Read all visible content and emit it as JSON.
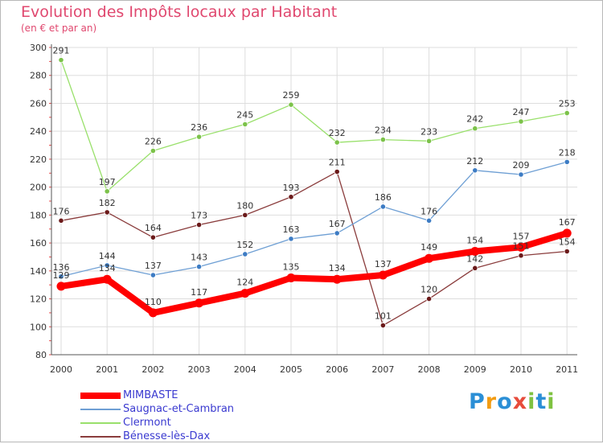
{
  "header": {
    "title": "Evolution des Impôts locaux par Habitant",
    "subtitle": "(en € et par an)"
  },
  "brand": {
    "letters": [
      "P",
      "r",
      "o",
      "x",
      "i",
      "t",
      "i"
    ],
    "colors": [
      "#2b8fd6",
      "#f39c12",
      "#2b8fd6",
      "#e74c3c",
      "#7fc241",
      "#2b8fd6",
      "#7fc241"
    ]
  },
  "chart_data": {
    "type": "line",
    "title": "Evolution des Impôts locaux par Habitant",
    "subtitle": "(en € et par an)",
    "xlabel": "",
    "ylabel": "",
    "x": [
      "2000",
      "2001",
      "2002",
      "2003",
      "2004",
      "2005",
      "2006",
      "2007",
      "2008",
      "2009",
      "2010",
      "2011"
    ],
    "ylim": [
      80,
      300
    ],
    "yticks": [
      80,
      100,
      120,
      140,
      160,
      180,
      200,
      220,
      240,
      260,
      280,
      300
    ],
    "grid": true,
    "legend_position": "bottom-left",
    "series": [
      {
        "name": "Clermont",
        "color": "#99e06b",
        "marker": "#7cc24a",
        "width": 1.3,
        "values": [
          291,
          197,
          226,
          236,
          245,
          259,
          232,
          234,
          233,
          242,
          247,
          253
        ]
      },
      {
        "name": "Bénesse-lès-Dax",
        "color": "#8a3c3c",
        "marker": "#6b1a1a",
        "width": 1.3,
        "values": [
          176,
          182,
          164,
          173,
          180,
          193,
          211,
          101,
          120,
          142,
          151,
          154
        ]
      },
      {
        "name": "Saugnac-et-Cambran",
        "color": "#6e9fd4",
        "marker": "#3d7cc4",
        "width": 1.3,
        "values": [
          136,
          144,
          137,
          143,
          152,
          163,
          167,
          186,
          176,
          212,
          209,
          218
        ]
      },
      {
        "name": "MIMBASTE",
        "color": "#ff0000",
        "marker": "#ff0000",
        "width": 8,
        "values": [
          129,
          134,
          110,
          117,
          124,
          135,
          134,
          137,
          149,
          154,
          157,
          167
        ]
      }
    ],
    "legend": [
      {
        "name": "MIMBASTE",
        "color": "#ff0000",
        "width": 8
      },
      {
        "name": "Saugnac-et-Cambran",
        "color": "#6e9fd4",
        "width": 2
      },
      {
        "name": "Clermont",
        "color": "#99e06b",
        "width": 2
      },
      {
        "name": "Bénesse-lès-Dax",
        "color": "#8a3c3c",
        "width": 2
      }
    ]
  }
}
